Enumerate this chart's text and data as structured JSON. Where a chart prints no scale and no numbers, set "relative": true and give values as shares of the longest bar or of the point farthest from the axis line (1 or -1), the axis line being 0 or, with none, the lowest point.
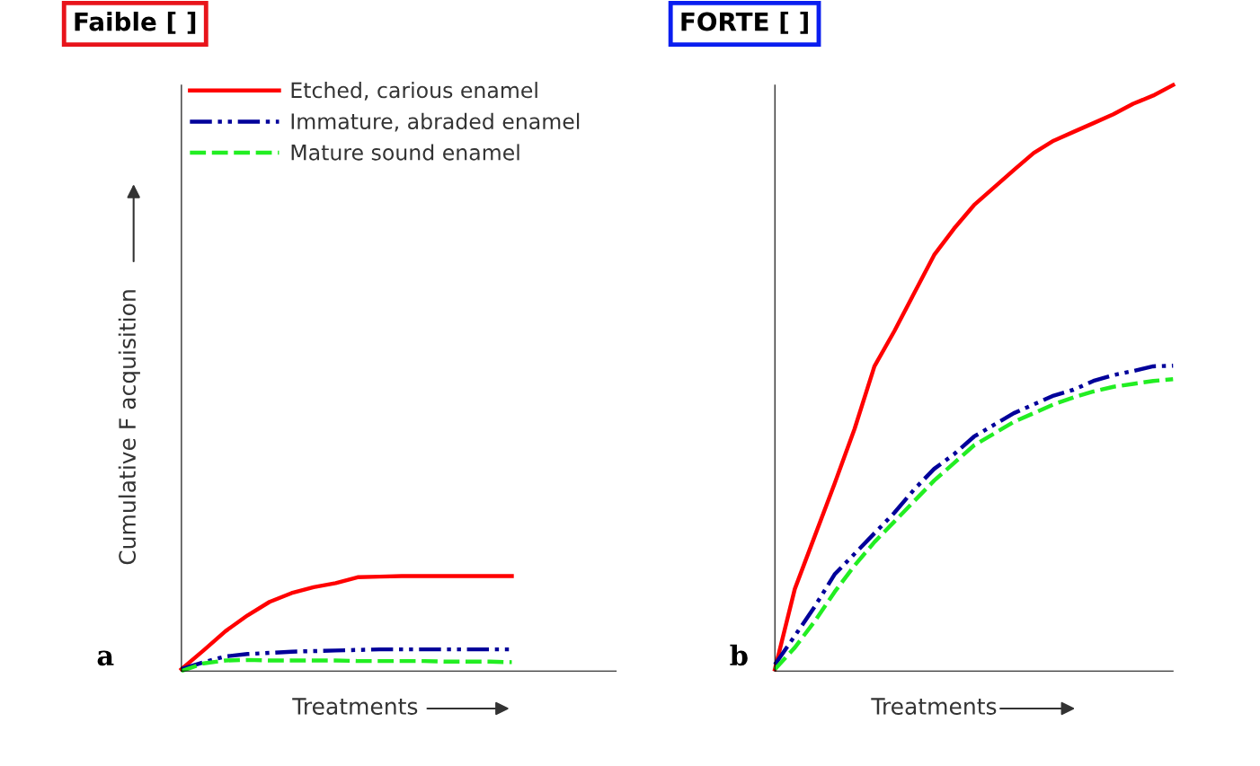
{
  "chart_data": [
    {
      "type": "line",
      "title": "Faible [ ]",
      "relative": true,
      "categories": [
        null,
        null,
        null,
        null,
        null,
        null,
        null,
        null,
        null,
        null,
        null,
        null,
        null,
        null,
        null,
        null
      ],
      "ylabel": "Cumulative F acquisition",
      "xlabel": "Treatments",
      "legend": "top",
      "annotations": [
        "a"
      ],
      "series": [
        {
          "name": "Etched, carious enamel",
          "color": "#ff0000",
          "line_style": "solid",
          "values": [
            0.019,
            0.216,
            0.42,
            0.586,
            0.728,
            0.821,
            0.883,
            0.926,
            0.988,
            0.994,
            1,
            1,
            1,
            1,
            1,
            1
          ]
        },
        {
          "name": "Immature, abraded enamel",
          "color": "#00009a",
          "line_style": "dashdot",
          "values": [
            0.019,
            0.093,
            0.154,
            0.179,
            0.191,
            0.204,
            0.21,
            0.216,
            0.222,
            0.228,
            0.228,
            0.228,
            0.228,
            0.228,
            0.228,
            0.228
          ]
        },
        {
          "name": "Mature sound enamel",
          "color": "#22ee22",
          "line_style": "dashed",
          "values": [
            0,
            0.08,
            0.111,
            0.117,
            0.111,
            0.111,
            0.111,
            0.111,
            0.105,
            0.105,
            0.105,
            0.105,
            0.099,
            0.099,
            0.099,
            0.093
          ]
        }
      ]
    },
    {
      "type": "line",
      "title": "FORTE [ ]",
      "relative": true,
      "categories": [
        null,
        null,
        null,
        null,
        null,
        null,
        null,
        null,
        null,
        null,
        null,
        null,
        null,
        null,
        null,
        null,
        null,
        null,
        null,
        null,
        null
      ],
      "xlabel": "Treatments",
      "annotations": [
        "b"
      ],
      "series": [
        {
          "color": "#ff0000",
          "line_style": "solid",
          "values": [
            0.003,
            0.14,
            0.23,
            0.32,
            0.413,
            0.52,
            0.58,
            0.645,
            0.71,
            0.755,
            0.795,
            0.825,
            0.855,
            0.884,
            0.905,
            0.92,
            0.935,
            0.95,
            0.968,
            0.982,
            1
          ]
        },
        {
          "color": "#00009a",
          "line_style": "dashdot",
          "values": [
            0.011,
            0.06,
            0.11,
            0.165,
            0.2,
            0.235,
            0.27,
            0.31,
            0.345,
            0.37,
            0.4,
            0.42,
            0.44,
            0.455,
            0.47,
            0.48,
            0.495,
            0.505,
            0.512,
            0.52,
            0.521
          ]
        },
        {
          "color": "#22ee22",
          "line_style": "dashed",
          "values": [
            0.003,
            0.04,
            0.085,
            0.135,
            0.18,
            0.22,
            0.255,
            0.29,
            0.325,
            0.355,
            0.385,
            0.405,
            0.425,
            0.44,
            0.455,
            0.467,
            0.477,
            0.485,
            0.49,
            0.495,
            0.498
          ]
        }
      ]
    }
  ]
}
